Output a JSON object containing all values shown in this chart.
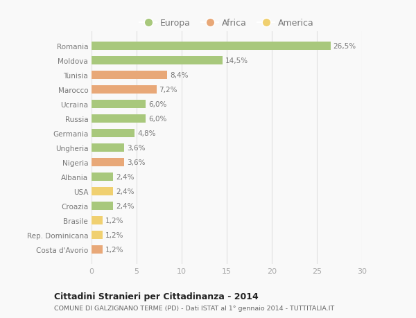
{
  "categories": [
    "Romania",
    "Moldova",
    "Tunisia",
    "Marocco",
    "Ucraina",
    "Russia",
    "Germania",
    "Ungheria",
    "Nigeria",
    "Albania",
    "USA",
    "Croazia",
    "Brasile",
    "Rep. Dominicana",
    "Costa d'Avorio"
  ],
  "values": [
    26.5,
    14.5,
    8.4,
    7.2,
    6.0,
    6.0,
    4.8,
    3.6,
    3.6,
    2.4,
    2.4,
    2.4,
    1.2,
    1.2,
    1.2
  ],
  "labels": [
    "26,5%",
    "14,5%",
    "8,4%",
    "7,2%",
    "6,0%",
    "6,0%",
    "4,8%",
    "3,6%",
    "3,6%",
    "2,4%",
    "2,4%",
    "2,4%",
    "1,2%",
    "1,2%",
    "1,2%"
  ],
  "continents": [
    "Europa",
    "Europa",
    "Africa",
    "Africa",
    "Europa",
    "Europa",
    "Europa",
    "Europa",
    "Africa",
    "Europa",
    "America",
    "Europa",
    "America",
    "America",
    "Africa"
  ],
  "colors": {
    "Europa": "#a8c87c",
    "Africa": "#e8a878",
    "America": "#f0d070"
  },
  "xlim": [
    0,
    30
  ],
  "xticks": [
    0,
    5,
    10,
    15,
    20,
    25,
    30
  ],
  "title": "Cittadini Stranieri per Cittadinanza - 2014",
  "subtitle": "COMUNE DI GALZIGNANO TERME (PD) - Dati ISTAT al 1° gennaio 2014 - TUTTITALIA.IT",
  "background_color": "#f9f9f9",
  "grid_color": "#e0e0e0",
  "label_color": "#777777",
  "tick_color": "#aaaaaa"
}
